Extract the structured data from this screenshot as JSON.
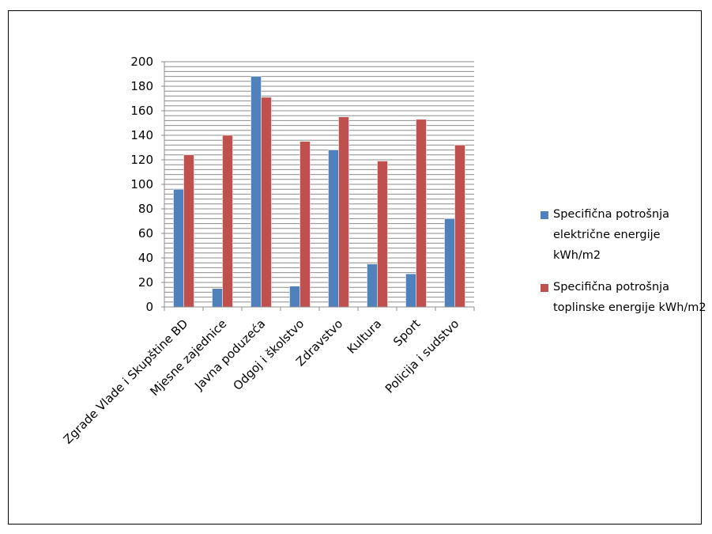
{
  "chart_data": {
    "type": "bar",
    "categories": [
      "Zgrade Vlade i Skupštine BD",
      "Mjesne zajednice",
      "Javna poduzeća",
      "Odgoj i školstvo",
      "Zdravstvo",
      "Kultura",
      "Sport",
      "Policija i sudstvo"
    ],
    "series": [
      {
        "name": "Specifična potrošnja električne energije kWh/m2",
        "color": "#4F81BD",
        "values": [
          96,
          15,
          188,
          17,
          128,
          35,
          27,
          72
        ]
      },
      {
        "name": "Specifična potrošnja toplinske energije kWh/m2",
        "color": "#C0504D",
        "values": [
          124,
          140,
          171,
          135,
          155,
          119,
          153,
          132
        ]
      }
    ],
    "ylim": [
      0,
      200
    ],
    "yticks": [
      0,
      20,
      40,
      60,
      80,
      100,
      120,
      140,
      160,
      180,
      200
    ],
    "grid": true,
    "legend_position": "right",
    "title": "",
    "xlabel": "",
    "ylabel": ""
  }
}
